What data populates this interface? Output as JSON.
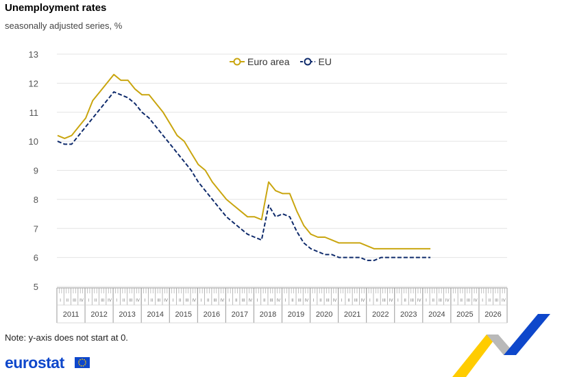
{
  "header": {
    "title": "Unemployment rates",
    "subtitle": "seasonally adjusted series, %"
  },
  "footer": {
    "note": "Note: y-axis does not start at 0.",
    "brand": "eurostat"
  },
  "colors": {
    "euro_area": "#c9a50e",
    "eu": "#0e2a6b",
    "grid": "#e3e3e3",
    "logo_blue": "#0e47cb",
    "logo_yellow": "#ffcc00"
  },
  "chart_data": {
    "type": "line",
    "ylim": [
      5,
      13
    ],
    "yticks": [
      5,
      6,
      7,
      8,
      9,
      10,
      11,
      12,
      13
    ],
    "years": [
      "2011",
      "2012",
      "2013",
      "2014",
      "2015",
      "2016",
      "2017",
      "2018",
      "2019",
      "2020",
      "2021",
      "2022",
      "2023",
      "2024",
      "2025",
      "2026"
    ],
    "quarter_labels": [
      "I",
      "II",
      "III",
      "IV"
    ],
    "x_start": "2011-01",
    "legend": {
      "placement": "top-center"
    },
    "series": [
      {
        "name": "Euro area",
        "style": "solid",
        "values": [
          10.2,
          10.1,
          10.2,
          10.5,
          10.8,
          11.4,
          11.7,
          12.0,
          12.3,
          12.1,
          12.1,
          11.8,
          11.6,
          11.6,
          11.3,
          11.0,
          10.6,
          10.2,
          10.0,
          9.6,
          9.2,
          9.0,
          8.6,
          8.3,
          8.0,
          7.8,
          7.6,
          7.4,
          7.4,
          7.3,
          8.6,
          8.3,
          8.2,
          8.2,
          7.6,
          7.1,
          6.8,
          6.7,
          6.7,
          6.6,
          6.5,
          6.5,
          6.5,
          6.5,
          6.4,
          6.3,
          6.3,
          6.3,
          6.3,
          6.3,
          6.3,
          6.3,
          6.3,
          6.3
        ]
      },
      {
        "name": "EU",
        "style": "dashed",
        "values": [
          10.0,
          9.9,
          9.9,
          10.2,
          10.5,
          10.8,
          11.1,
          11.4,
          11.7,
          11.6,
          11.5,
          11.3,
          11.0,
          10.8,
          10.5,
          10.2,
          9.9,
          9.6,
          9.3,
          9.0,
          8.6,
          8.3,
          8.0,
          7.7,
          7.4,
          7.2,
          7.0,
          6.8,
          6.7,
          6.6,
          7.8,
          7.4,
          7.5,
          7.4,
          6.9,
          6.5,
          6.3,
          6.2,
          6.1,
          6.1,
          6.0,
          6.0,
          6.0,
          6.0,
          5.9,
          5.9,
          6.0,
          6.0,
          6.0,
          6.0,
          6.0,
          6.0,
          6.0,
          6.0
        ]
      }
    ]
  }
}
